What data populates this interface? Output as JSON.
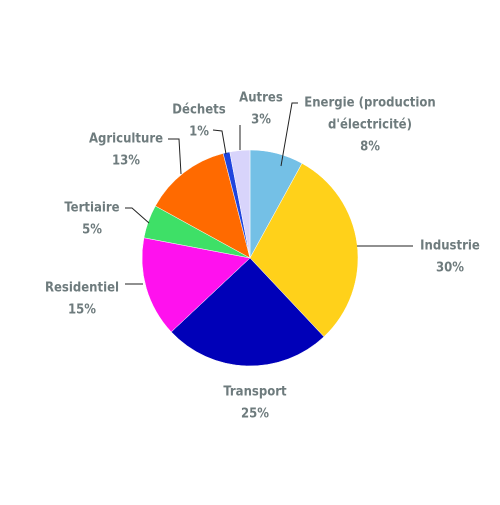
{
  "chart_data": {
    "type": "pie",
    "title": "",
    "start": "top",
    "direction": "clockwise",
    "legend": "none",
    "slices": [
      {
        "name": "Energie (production d'électricité)",
        "label_lines": [
          "Energie (production",
          "d'électricité)"
        ],
        "value": 8,
        "value_label": "8%",
        "color": "#74c0e6"
      },
      {
        "name": "Industrie",
        "label_lines": [
          "Industrie"
        ],
        "value": 30,
        "value_label": "30%",
        "color": "#ffd11a"
      },
      {
        "name": "Transport",
        "label_lines": [
          "Transport"
        ],
        "value": 25,
        "value_label": "25%",
        "color": "#0000b8"
      },
      {
        "name": "Residentiel",
        "label_lines": [
          "Residentiel"
        ],
        "value": 15,
        "value_label": "15%",
        "color": "#ff11ee"
      },
      {
        "name": "Tertiaire",
        "label_lines": [
          "Tertiaire"
        ],
        "value": 5,
        "value_label": "5%",
        "color": "#3ee067"
      },
      {
        "name": "Agriculture",
        "label_lines": [
          "Agriculture"
        ],
        "value": 13,
        "value_label": "13%",
        "color": "#ff6a00"
      },
      {
        "name": "Déchets",
        "label_lines": [
          "Déchets"
        ],
        "value": 1,
        "value_label": "1%",
        "color": "#1f45dd"
      },
      {
        "name": "Autres",
        "label_lines": [
          "Autres"
        ],
        "value": 3,
        "value_label": "3%",
        "color": "#d8d4fb"
      }
    ]
  }
}
